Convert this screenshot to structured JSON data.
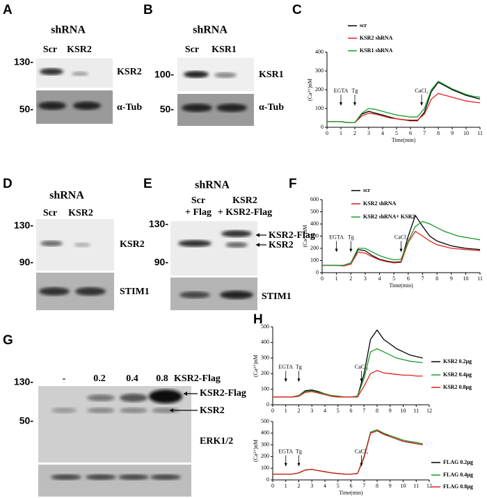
{
  "blots": {
    "A": {
      "letter": "A",
      "header": "shRNA",
      "lanes": [
        "Scr",
        "KSR2"
      ],
      "markers": [
        "130-",
        "50-"
      ],
      "labels": [
        "KSR2",
        "α-Tub"
      ]
    },
    "B": {
      "letter": "B",
      "header": "shRNA",
      "lanes": [
        "Scr",
        "KSR1"
      ],
      "markers": [
        "100-",
        "50-"
      ],
      "labels": [
        "KSR1",
        "α-Tub"
      ]
    },
    "D": {
      "letter": "D",
      "header": "shRNA",
      "lanes": [
        "Scr",
        "KSR2"
      ],
      "markers": [
        "130-",
        "90-"
      ],
      "labels": [
        "KSR2",
        "STIM1"
      ]
    },
    "E": {
      "letter": "E",
      "header": "shRNA",
      "lanes": [
        "Scr",
        "+ Flag",
        "KSR2",
        "+ KSR2-Flag"
      ],
      "markers": [
        "130-",
        "90-"
      ],
      "labels": [
        "KSR2-Flag",
        "KSR2",
        "STIM1"
      ]
    },
    "G": {
      "letter": "G",
      "lanes": [
        "-",
        "0.2",
        "0.4",
        "0.8"
      ],
      "treatment": "KSR2-Flag",
      "markers": [
        "130-",
        "50-"
      ],
      "labels": [
        "KSR2-Flag",
        "KSR2",
        "ERK1/2"
      ]
    }
  },
  "chart_data": [
    {
      "type": "line",
      "panel": "C",
      "x_label": "Time(min)",
      "y_label": "(Ca²⁺)nM",
      "x": [
        0,
        0.5,
        1,
        1.5,
        2,
        2.5,
        3,
        3.5,
        4,
        4.5,
        5,
        5.5,
        6,
        6.5,
        7,
        7.5,
        8,
        8.5,
        9,
        9.5,
        10,
        10.5,
        11
      ],
      "xlim": [
        0,
        11
      ],
      "xticks": [
        0,
        1,
        2,
        3,
        4,
        5,
        6,
        7,
        8,
        9,
        10,
        11
      ],
      "ylim": [
        0,
        400
      ],
      "yticks": [
        0,
        100,
        200,
        300,
        400
      ],
      "series": [
        {
          "name": "scr",
          "color": "#000000",
          "values": [
            30,
            30,
            30,
            25,
            25,
            70,
            85,
            75,
            65,
            55,
            45,
            40,
            35,
            35,
            80,
            190,
            240,
            220,
            200,
            185,
            170,
            160,
            150
          ]
        },
        {
          "name": "KSR2 shRNA",
          "color": "#e0201b",
          "values": [
            30,
            30,
            30,
            25,
            25,
            60,
            75,
            70,
            60,
            50,
            45,
            40,
            38,
            38,
            70,
            150,
            180,
            170,
            160,
            150,
            140,
            135,
            130
          ]
        },
        {
          "name": "KSR1 shRNA",
          "color": "#1a9a2a",
          "values": [
            30,
            30,
            30,
            25,
            25,
            75,
            100,
            95,
            85,
            75,
            65,
            60,
            55,
            55,
            100,
            200,
            245,
            225,
            205,
            190,
            175,
            165,
            160
          ]
        }
      ],
      "annotations": [
        {
          "text": "EGTA",
          "x": 1
        },
        {
          "text": "Tg",
          "x": 2
        },
        {
          "text": "CaCl₂",
          "x": 6.8
        }
      ]
    },
    {
      "type": "line",
      "panel": "F",
      "x_label": "Time(min)",
      "y_label": "(Ca²⁺)nM",
      "x": [
        0,
        0.5,
        1,
        1.5,
        2,
        2.5,
        3,
        3.5,
        4,
        4.5,
        5,
        5.5,
        6,
        6.5,
        7,
        7.5,
        8,
        8.5,
        9,
        9.5,
        10,
        10.5,
        11
      ],
      "xlim": [
        0,
        11
      ],
      "xticks": [
        0,
        1,
        2,
        3,
        4,
        5,
        6,
        7,
        8,
        9,
        10,
        11
      ],
      "ylim": [
        0,
        600
      ],
      "yticks": [
        0,
        100,
        200,
        300,
        400,
        500,
        600
      ],
      "series": [
        {
          "name": "scr",
          "color": "#000000",
          "values": [
            60,
            60,
            60,
            60,
            80,
            190,
            180,
            140,
            110,
            95,
            85,
            90,
            300,
            470,
            380,
            300,
            260,
            240,
            220,
            210,
            200,
            195,
            190
          ]
        },
        {
          "name": "KSR2 shRNA",
          "color": "#e0201b",
          "values": [
            60,
            60,
            60,
            55,
            70,
            170,
            160,
            130,
            105,
            90,
            80,
            85,
            250,
            340,
            300,
            260,
            230,
            215,
            200,
            195,
            190,
            185,
            180
          ]
        },
        {
          "name": "KSR2 shRNA+ KSR2",
          "color": "#1a9a2a",
          "values": [
            60,
            60,
            60,
            60,
            80,
            200,
            200,
            170,
            140,
            120,
            105,
            110,
            260,
            380,
            420,
            400,
            370,
            340,
            320,
            300,
            290,
            280,
            270
          ]
        }
      ],
      "annotations": [
        {
          "text": "EGTA",
          "x": 1
        },
        {
          "text": "Tg",
          "x": 2
        },
        {
          "text": "CaCl₂",
          "x": 5.5
        }
      ]
    },
    {
      "type": "line",
      "panel": "H",
      "y_label": "(Ca²⁺)nM",
      "x": [
        0,
        0.5,
        1,
        1.5,
        2,
        2.5,
        3,
        3.5,
        4,
        4.5,
        5,
        5.5,
        6,
        6.5,
        7,
        7.5,
        8,
        8.5,
        9,
        9.5,
        10,
        10.5,
        11,
        11.5,
        12
      ],
      "xlim": [
        0,
        12
      ],
      "xticks": [
        0,
        1,
        2,
        3,
        4,
        5,
        6,
        7,
        8,
        9,
        10,
        11,
        12
      ],
      "ylim": [
        0,
        500
      ],
      "yticks": [
        0,
        100,
        200,
        300,
        400,
        500
      ],
      "series": [
        {
          "name": "KSR2 0.2µg",
          "color": "#000000",
          "values": [
            50,
            50,
            50,
            50,
            60,
            90,
            95,
            85,
            70,
            60,
            55,
            50,
            50,
            55,
            200,
            420,
            480,
            420,
            390,
            360,
            340,
            320,
            310,
            300,
            null
          ]
        },
        {
          "name": "KSR2 0.4µg",
          "color": "#1a9a2a",
          "values": [
            50,
            50,
            50,
            50,
            60,
            85,
            90,
            80,
            70,
            60,
            55,
            50,
            50,
            55,
            170,
            340,
            360,
            340,
            320,
            300,
            290,
            280,
            275,
            270,
            null
          ]
        },
        {
          "name": "KSR2 0.8µg",
          "color": "#e0201b",
          "values": [
            50,
            50,
            50,
            50,
            55,
            80,
            85,
            75,
            65,
            55,
            50,
            50,
            50,
            50,
            120,
            200,
            220,
            205,
            200,
            195,
            190,
            190,
            185,
            185,
            null
          ]
        }
      ],
      "annotations": [
        {
          "text": "EGTA",
          "x": 1
        },
        {
          "text": "Tg",
          "x": 2
        },
        {
          "text": "CaCl₂",
          "x": 6.8
        }
      ]
    },
    {
      "type": "line",
      "x_label": "Time(min)",
      "y_label": "(Ca²⁺)nM",
      "x": [
        0,
        0.5,
        1,
        1.5,
        2,
        2.5,
        3,
        3.5,
        4,
        4.5,
        5,
        5.5,
        6,
        6.5,
        7,
        7.5,
        8,
        8.5,
        9,
        9.5,
        10,
        10.5,
        11,
        11.5,
        12
      ],
      "xlim": [
        0,
        12
      ],
      "xticks": [
        0,
        1,
        2,
        3,
        4,
        5,
        6,
        7,
        8,
        9,
        10,
        11,
        12
      ],
      "ylim": [
        0,
        500
      ],
      "yticks": [
        0,
        100,
        200,
        300,
        400,
        500
      ],
      "series": [
        {
          "name": "FLAG 0.2µg",
          "color": "#000000",
          "values": [
            50,
            50,
            50,
            50,
            60,
            85,
            90,
            80,
            70,
            60,
            55,
            50,
            50,
            55,
            200,
            400,
            420,
            400,
            370,
            350,
            330,
            320,
            310,
            300,
            null
          ]
        },
        {
          "name": "FLAG 0.4µg",
          "color": "#1a9a2a",
          "values": [
            50,
            50,
            50,
            50,
            60,
            85,
            90,
            80,
            70,
            60,
            55,
            50,
            50,
            55,
            200,
            410,
            430,
            400,
            380,
            360,
            340,
            330,
            320,
            310,
            null
          ]
        },
        {
          "name": "FLAG 0.8µg",
          "color": "#e0201b",
          "values": [
            50,
            50,
            50,
            50,
            60,
            85,
            90,
            80,
            70,
            60,
            55,
            50,
            50,
            55,
            190,
            400,
            420,
            390,
            370,
            350,
            330,
            320,
            310,
            300,
            null
          ]
        }
      ],
      "annotations": [
        {
          "text": "EGTA",
          "x": 1
        },
        {
          "text": "Tg",
          "x": 2
        },
        {
          "text": "CaCl₂",
          "x": 6.8
        }
      ]
    }
  ]
}
